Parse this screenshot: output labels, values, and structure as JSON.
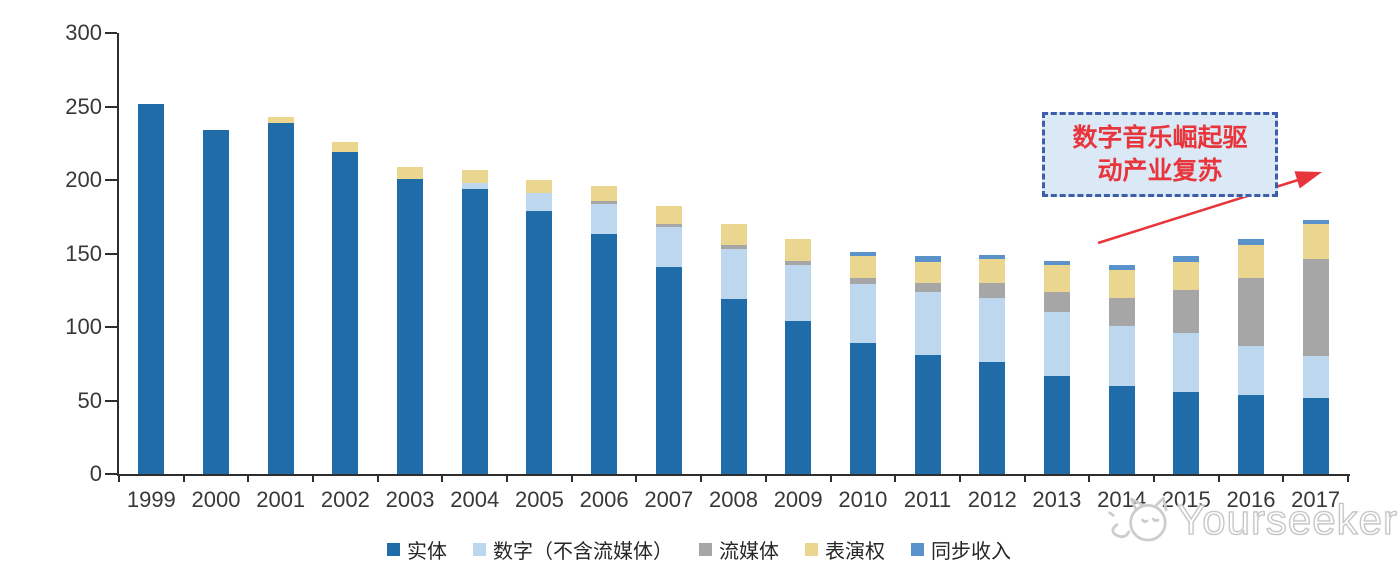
{
  "annotation": {
    "line1": "数字音乐崛起驱",
    "line2": "动产业复苏"
  },
  "watermark": {
    "brand": "Yourseeker"
  },
  "colors": {
    "axis": "#2E2E2E",
    "tick_label": "#383838",
    "annotation_border": "#3F5EA8",
    "annotation_fill": "#DBE8F6",
    "annotation_text": "#E8353B",
    "arrow": "#E8353B",
    "watermark": "#C5C5C5"
  },
  "chart_data": {
    "type": "bar",
    "stacked": true,
    "categories": [
      "1999",
      "2000",
      "2001",
      "2002",
      "2003",
      "2004",
      "2005",
      "2006",
      "2007",
      "2008",
      "2009",
      "2010",
      "2011",
      "2012",
      "2013",
      "2014",
      "2015",
      "2016",
      "2017"
    ],
    "series": [
      {
        "name": "实体",
        "color": "#1F6CA8",
        "values": [
          252,
          234,
          239,
          219,
          201,
          194,
          179,
          163,
          141,
          119,
          104,
          89,
          81,
          76,
          67,
          60,
          56,
          54,
          52
        ]
      },
      {
        "name": "数字（不含流媒体）",
        "color": "#BDD7EE",
        "values": [
          0,
          0,
          0,
          0,
          0,
          4,
          12,
          21,
          27,
          34,
          38,
          40,
          43,
          44,
          43,
          41,
          40,
          33,
          28
        ]
      },
      {
        "name": "流媒体",
        "color": "#A6A6A6",
        "values": [
          0,
          0,
          0,
          0,
          0,
          0,
          0,
          2,
          2,
          3,
          3,
          4,
          6,
          10,
          14,
          19,
          29,
          46,
          66
        ]
      },
      {
        "name": "表演权",
        "color": "#EBD68F",
        "values": [
          0,
          0,
          4,
          7,
          8,
          9,
          9,
          10,
          12,
          14,
          15,
          15,
          14,
          16,
          18,
          19,
          19,
          23,
          24
        ]
      },
      {
        "name": "同步收入",
        "color": "#5A93CC",
        "values": [
          0,
          0,
          0,
          0,
          0,
          0,
          0,
          0,
          0,
          0,
          0,
          3,
          4,
          3,
          3,
          3,
          4,
          4,
          3
        ]
      }
    ],
    "ylim": [
      0,
      300
    ],
    "yticks": [
      0,
      50,
      100,
      150,
      200,
      250,
      300
    ],
    "xlabel": "",
    "ylabel": "",
    "grid": false,
    "legend_position": "bottom"
  }
}
